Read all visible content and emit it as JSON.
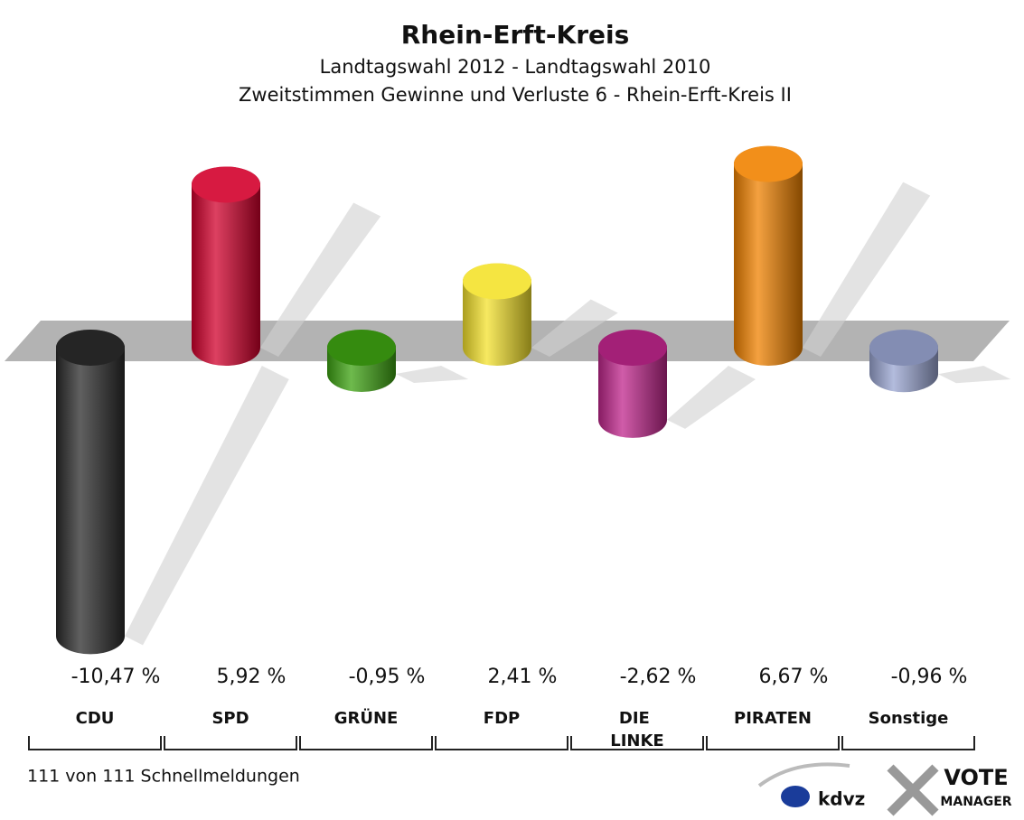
{
  "chart_data": {
    "type": "bar",
    "title": "Rhein-Erft-Kreis",
    "subtitle": [
      "Landtagswahl 2012 - Landtagswahl 2010",
      "Zweitstimmen Gewinne und Verluste 6 - Rhein-Erft-Kreis II"
    ],
    "categories": [
      "CDU",
      "SPD",
      "GRÜNE",
      "FDP",
      "DIE LINKE",
      "PIRATEN",
      "Sonstige"
    ],
    "values": [
      -10.47,
      5.92,
      -0.95,
      2.41,
      -2.62,
      6.67,
      -0.96
    ],
    "value_labels": [
      "-10,47 %",
      "5,92 %",
      "-0,95 %",
      "2,41 %",
      "-2,62 %",
      "6,67 %",
      "-0,96 %"
    ],
    "colors": [
      "#2b2b2b",
      "#d2002c",
      "#3ea312",
      "#f4e22c",
      "#c0268c",
      "#f08200",
      "#9aa6d2"
    ],
    "footnote": "111 von 111 Schnellmeldungen",
    "logos": [
      "kdvz",
      "VOTE",
      "MANAGER"
    ]
  }
}
